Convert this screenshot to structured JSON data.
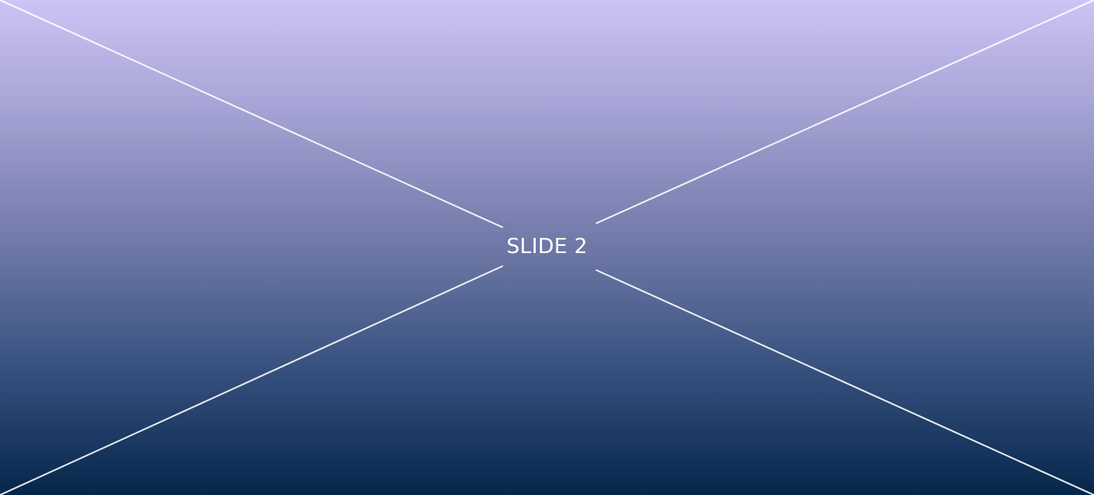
{
  "slide": {
    "label": "SLIDE 2",
    "text_color": "#ffffff",
    "line_color": "#ffffff",
    "gradient_top": "#cdc4f5",
    "gradient_bottom": "#05264b"
  }
}
